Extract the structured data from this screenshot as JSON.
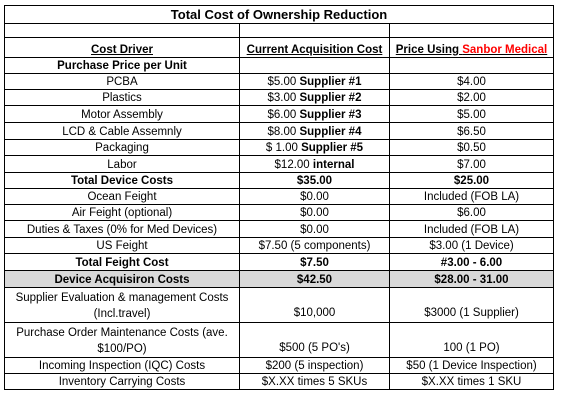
{
  "title": "Total Cost of Ownership Reduction",
  "headers": {
    "driver": "Cost Driver",
    "current": "Current Acquisition Cost",
    "price_prefix": "Price Using ",
    "price_brand": "Sanbor Medical"
  },
  "rows": [
    {
      "driver": "Purchase Price per Unit",
      "current": "",
      "price": "",
      "style": "bold"
    },
    {
      "driver": "PCBA",
      "current_amt": "$5.00 ",
      "current_sup": "Supplier #1",
      "price": "$4.00"
    },
    {
      "driver": "Plastics",
      "current_amt": "$3.00 ",
      "current_sup": "Supplier #2",
      "price": "$2.00"
    },
    {
      "driver": "Motor Assembly",
      "current_amt": "$6.00 ",
      "current_sup": "Supplier #3",
      "price": "$5.00"
    },
    {
      "driver": "LCD & Cable Assemnly",
      "current_amt": "$8.00 ",
      "current_sup": "Supplier #4",
      "price": "$6.50"
    },
    {
      "driver": "Packaging",
      "current_amt": "$ 1.00 ",
      "current_sup": "Supplier #5",
      "price": "$0.50"
    },
    {
      "driver": "Labor",
      "current_amt": "$12.00 ",
      "current_sup": "internal",
      "price": "$7.00"
    },
    {
      "driver": "Total Device Costs",
      "current": "$35.00",
      "price": "$25.00",
      "style": "bold"
    },
    {
      "driver": "Ocean Feight",
      "current": "$0.00",
      "price": "Included (FOB LA)"
    },
    {
      "driver": "Air Feight (optional)",
      "current": "$0.00",
      "price": "$6.00"
    },
    {
      "driver": "Duties & Taxes (0% for Med Devices)",
      "current": "$0.00",
      "price": "Included (FOB LA)"
    },
    {
      "driver": "US Feight",
      "current": "$7.50 (5 components)",
      "price": "$3.00 (1 Device)"
    },
    {
      "driver": "Total Feight Cost",
      "current": "$7.50",
      "price": "#3.00 - 6.00",
      "style": "bold"
    },
    {
      "driver": "Device Acquisiron Costs",
      "current": "$42.50",
      "price": "$28.00 - 31.00",
      "style": "grey"
    },
    {
      "driver_line1": "Supplier Evaluation & management Costs",
      "driver_line2": "(Incl.travel)",
      "current": "$10,000",
      "price": "$3000 (1 Supplier)"
    },
    {
      "driver_line1": "Purchase Order Maintenance Costs (ave.",
      "driver_line2": "$100/PO)",
      "current": "$500 (5 PO's)",
      "price": "100 (1 PO)"
    },
    {
      "driver": "Incoming Inspection (IQC) Costs",
      "current": "$200 (5 inspection)",
      "price": "$50 (1 Device Inspection)"
    },
    {
      "driver": "Inventory Carrying Costs",
      "current": "$X.XX times 5 SKUs",
      "price": "$X.XX times 1 SKU"
    }
  ],
  "colors": {
    "brand_red": "#ff0000",
    "highlight_grey": "#d9d9d9"
  }
}
